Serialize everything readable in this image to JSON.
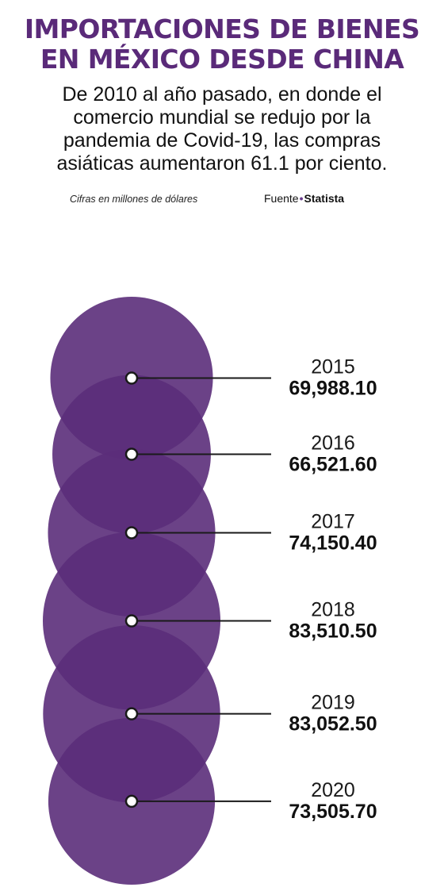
{
  "title_lines": [
    "IMPORTACIONES DE BIENES",
    "EN MÉXICO DESDE CHINA"
  ],
  "subtitle_lines": [
    "De 2010 al año pasado, en donde el",
    "comercio mundial se redujo por la",
    "pandemia de Covid-19, las compras",
    "asiáticas aumentaron 61.1 por ciento."
  ],
  "note": "Cifras en millones de dólares",
  "source": {
    "label": "Fuente",
    "separator": "•",
    "name": "Statista"
  },
  "colors": {
    "circle": "#5b2d7a",
    "title": "#5a2a79",
    "leader_line": "#1a1a1a",
    "marker_fill": "#ffffff"
  },
  "chart_data": {
    "type": "bubble",
    "title": "IMPORTACIONES DE BIENES EN MÉXICO DESDE CHINA",
    "unit": "Cifras en millones de dólares",
    "categories": [
      "2015",
      "2016",
      "2017",
      "2018",
      "2019",
      "2020"
    ],
    "values": [
      69988.1,
      66521.6,
      74150.4,
      83510.5,
      83052.5,
      73505.7
    ],
    "value_labels": [
      "69,988.10",
      "66,521.60",
      "74,150.40",
      "83,510.50",
      "83,052.50",
      "73,505.70"
    ]
  }
}
